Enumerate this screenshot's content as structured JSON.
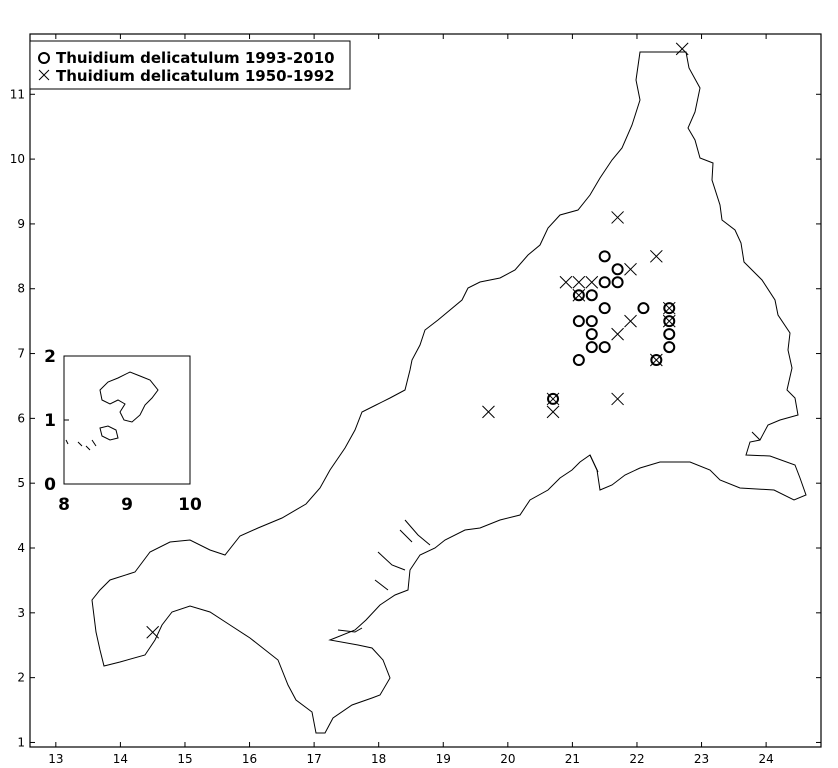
{
  "chart_data": {
    "type": "scatter",
    "x_ticks": [
      "13",
      "14",
      "15",
      "16",
      "17",
      "18",
      "19",
      "20",
      "21",
      "22",
      "23",
      "24"
    ],
    "y_ticks": [
      "1",
      "2",
      "3",
      "4",
      "5",
      "6",
      "7",
      "8",
      "9",
      "10",
      "11"
    ],
    "xlim": [
      12.6,
      24.85
    ],
    "ylim": [
      0.93,
      11.93
    ],
    "grid": false,
    "legend_position": "top-left",
    "series": [
      {
        "name": "Thuidium delicatulum 1993-2010",
        "marker": "circle",
        "points": [
          [
            20.7,
            6.3
          ],
          [
            21.1,
            7.9
          ],
          [
            21.3,
            7.9
          ],
          [
            21.5,
            8.5
          ],
          [
            21.7,
            8.3
          ],
          [
            21.5,
            8.1
          ],
          [
            21.7,
            8.1
          ],
          [
            21.1,
            7.5
          ],
          [
            21.3,
            7.5
          ],
          [
            21.5,
            7.7
          ],
          [
            21.3,
            7.3
          ],
          [
            21.3,
            7.1
          ],
          [
            21.5,
            7.1
          ],
          [
            21.1,
            6.9
          ],
          [
            22.1,
            7.7
          ],
          [
            22.5,
            7.7
          ],
          [
            22.5,
            7.5
          ],
          [
            22.5,
            7.3
          ],
          [
            22.5,
            7.1
          ],
          [
            22.3,
            6.9
          ]
        ]
      },
      {
        "name": "Thuidium delicatulum 1950-1992",
        "marker": "x",
        "points": [
          [
            22.7,
            11.7
          ],
          [
            21.7,
            9.1
          ],
          [
            22.3,
            8.5
          ],
          [
            20.9,
            8.1
          ],
          [
            21.1,
            8.1
          ],
          [
            21.3,
            8.1
          ],
          [
            21.9,
            8.3
          ],
          [
            21.1,
            7.9
          ],
          [
            21.9,
            7.5
          ],
          [
            21.7,
            7.3
          ],
          [
            22.5,
            7.7
          ],
          [
            22.5,
            7.5
          ],
          [
            22.3,
            6.9
          ],
          [
            20.7,
            6.3
          ],
          [
            20.7,
            6.1
          ],
          [
            21.7,
            6.3
          ],
          [
            19.7,
            6.1
          ],
          [
            14.5,
            2.7
          ]
        ]
      }
    ],
    "inset": {
      "x_ticks": [
        "8",
        "9",
        "10"
      ],
      "y_ticks": [
        "0",
        "1",
        "2"
      ],
      "xlim": [
        8,
        10
      ],
      "ylim": [
        0,
        2
      ]
    }
  }
}
